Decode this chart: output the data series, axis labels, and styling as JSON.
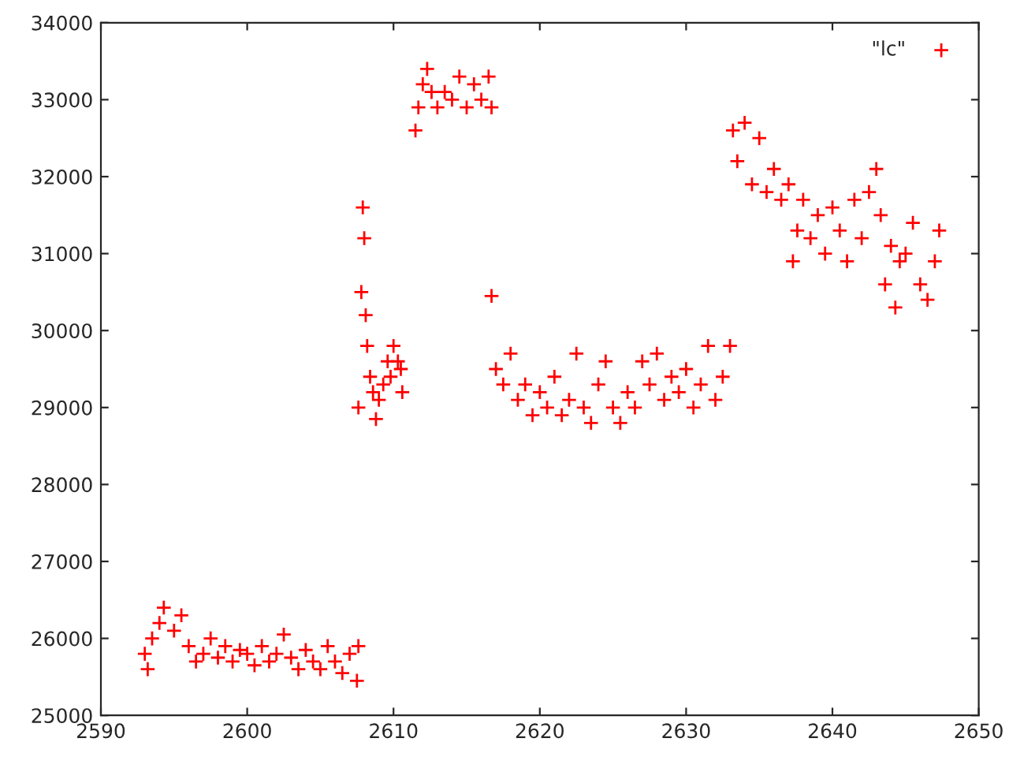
{
  "chart_data": {
    "type": "scatter",
    "marker": "cross",
    "legend": "top right",
    "grid": false,
    "xlim": [
      2590,
      2650
    ],
    "xticks": [
      2590,
      2600,
      2610,
      2620,
      2630,
      2640,
      2650
    ],
    "ylim": [
      25000,
      34000
    ],
    "yticks": [
      25000,
      26000,
      27000,
      28000,
      29000,
      30000,
      31000,
      32000,
      33000,
      34000
    ],
    "series": [
      {
        "name": "\"lc\"",
        "color": "#ff0000",
        "x": [
          2593,
          2593.2,
          2593.5,
          2594,
          2594.3,
          2595,
          2595.5,
          2596,
          2596.5,
          2597,
          2597.5,
          2598,
          2598.5,
          2599,
          2599.5,
          2600,
          2600.5,
          2601,
          2601.5,
          2602,
          2602.5,
          2603,
          2603.5,
          2604,
          2604.5,
          2605,
          2605.5,
          2606,
          2606.5,
          2607,
          2607.5,
          2607.6,
          2607.6,
          2607.8,
          2607.9,
          2608,
          2608.1,
          2608.2,
          2608.4,
          2608.6,
          2608.8,
          2609,
          2609.3,
          2609.6,
          2609.8,
          2610,
          2610.3,
          2610.6,
          2610.5,
          2611.5,
          2611.7,
          2612,
          2612.3,
          2612.6,
          2613,
          2613.5,
          2614,
          2614.5,
          2615,
          2615.5,
          2616,
          2616.5,
          2616.7,
          2616.7,
          2617,
          2617.5,
          2618,
          2618.5,
          2619,
          2619.5,
          2620,
          2620.5,
          2621,
          2621.5,
          2622,
          2622.5,
          2623,
          2623.5,
          2624,
          2624.5,
          2625,
          2625.5,
          2626,
          2626.5,
          2627,
          2627.5,
          2628,
          2628.5,
          2629,
          2629.5,
          2630,
          2630.5,
          2631,
          2631.5,
          2632,
          2632.5,
          2633,
          2633.2,
          2633.5,
          2634,
          2634.5,
          2635,
          2635.5,
          2636,
          2636.5,
          2637,
          2637.3,
          2637.6,
          2638,
          2638.5,
          2639,
          2639.5,
          2640,
          2640.5,
          2641,
          2641.5,
          2642,
          2642.5,
          2643,
          2643.3,
          2643.6,
          2644,
          2644.3,
          2644.6,
          2645,
          2645.5,
          2646,
          2646.5,
          2647,
          2647.3
        ],
        "values": [
          25800,
          25600,
          26000,
          26200,
          26400,
          26100,
          26300,
          25900,
          25700,
          25800,
          26000,
          25750,
          25900,
          25700,
          25850,
          25800,
          25650,
          25900,
          25700,
          25800,
          26050,
          25750,
          25600,
          25850,
          25700,
          25600,
          25900,
          25700,
          25550,
          25800,
          25450,
          25900,
          29000,
          30500,
          31600,
          31200,
          30200,
          29800,
          29400,
          29200,
          28850,
          29100,
          29300,
          29600,
          29400,
          29800,
          29600,
          29200,
          29500,
          32600,
          32900,
          33200,
          33400,
          33100,
          32900,
          33100,
          33000,
          33300,
          32900,
          33200,
          33000,
          33300,
          32900,
          30450,
          29500,
          29300,
          29700,
          29100,
          29300,
          28900,
          29200,
          29000,
          29400,
          28900,
          29100,
          29700,
          29000,
          28800,
          29300,
          29600,
          29000,
          28800,
          29200,
          29000,
          29600,
          29300,
          29700,
          29100,
          29400,
          29200,
          29500,
          29000,
          29300,
          29800,
          29100,
          29400,
          29800,
          32600,
          32200,
          32700,
          31900,
          32500,
          31800,
          32100,
          31700,
          31900,
          30900,
          31300,
          31700,
          31200,
          31500,
          31000,
          31600,
          31300,
          30900,
          31700,
          31200,
          31800,
          32100,
          31500,
          30600,
          31100,
          30300,
          30900,
          31000,
          31400,
          30600,
          30400,
          30900,
          31300
        ]
      }
    ]
  }
}
